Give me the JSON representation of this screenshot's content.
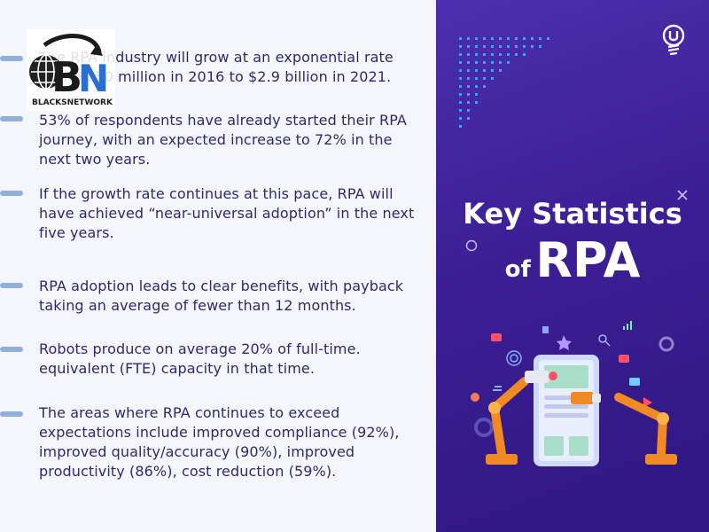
{
  "logo": {
    "text": "BLACKSNETWORK"
  },
  "stats": [
    {
      "text": "The RPA industry will grow at an exponential rate from $250 million in 2016 to $2.9 billion in 2021."
    },
    {
      "text": "53% of respondents have already started their RPA journey, with an expected increase to 72% in the next two years."
    },
    {
      "text": "If the growth rate continues at this pace, RPA will have achieved “near-universal adoption” in the next five years."
    },
    {
      "text": "RPA adoption leads to clear benefits, with payback taking an average of fewer than 12 months."
    },
    {
      "text": "Robots produce on average 20% of full-time. equivalent (FTE) capacity in that time."
    },
    {
      "text": "The areas where RPA continues to exceed expectations include improved compliance (92%), improved quality/accuracy (90%), improved productivity (86%), cost reduction (59%)."
    }
  ],
  "title": {
    "line1": "Key Statistics",
    "of": "of",
    "rpa": "RPA"
  },
  "colors": {
    "panel": "#3c1f95",
    "text": "#2d2b6b",
    "dash": "#8fb0dd",
    "accent": "#f08a24"
  },
  "icons": [
    "blacksnetwork-logo",
    "brand-logo-icon",
    "robot-arm-illustration",
    "gear-icon",
    "chat-icon",
    "thumbs-up-icon",
    "star-icon",
    "search-icon",
    "heart-icon",
    "wifi-icon",
    "play-icon"
  ]
}
